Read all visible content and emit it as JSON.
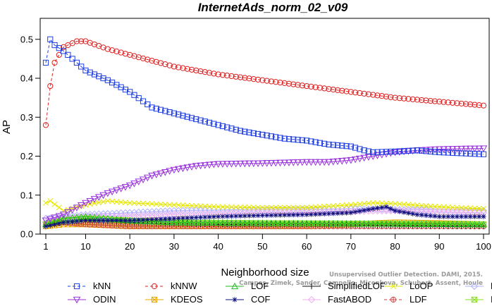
{
  "chart_data": {
    "type": "line",
    "title": "InternetAds_norm_02_v09",
    "xlabel": "Neighborhood size",
    "ylabel": "AP",
    "xlim": [
      1,
      100
    ],
    "ylim": [
      0,
      0.52
    ],
    "xticks": [
      1,
      10,
      20,
      30,
      40,
      50,
      60,
      70,
      80,
      90,
      100
    ],
    "yticks": [
      0.0,
      0.1,
      0.2,
      0.3,
      0.4,
      0.5
    ],
    "credit_lines": [
      "Unsupervised Outlier Detection. DAMI, 2015.",
      "Campos, Zimek, Sander, Campello, Micenkova, Schubert, Assent, Houle"
    ],
    "series": [
      {
        "name": "kNN",
        "color": "#1f3fe0",
        "marker": "square",
        "dash": "4,3",
        "keypoints": [
          [
            1,
            0.44
          ],
          [
            2,
            0.5
          ],
          [
            3,
            0.485
          ],
          [
            5,
            0.47
          ],
          [
            8,
            0.44
          ],
          [
            10,
            0.42
          ],
          [
            15,
            0.395
          ],
          [
            20,
            0.365
          ],
          [
            25,
            0.325
          ],
          [
            30,
            0.31
          ],
          [
            35,
            0.295
          ],
          [
            40,
            0.28
          ],
          [
            45,
            0.265
          ],
          [
            50,
            0.255
          ],
          [
            55,
            0.245
          ],
          [
            60,
            0.24
          ],
          [
            65,
            0.23
          ],
          [
            70,
            0.225
          ],
          [
            73,
            0.215
          ],
          [
            75,
            0.21
          ],
          [
            80,
            0.212
          ],
          [
            85,
            0.215
          ],
          [
            90,
            0.21
          ],
          [
            100,
            0.205
          ]
        ]
      },
      {
        "name": "kNNW",
        "color": "#e02020",
        "marker": "circle",
        "dash": "4,3",
        "keypoints": [
          [
            1,
            0.28
          ],
          [
            2,
            0.38
          ],
          [
            3,
            0.44
          ],
          [
            5,
            0.48
          ],
          [
            8,
            0.495
          ],
          [
            10,
            0.495
          ],
          [
            15,
            0.475
          ],
          [
            20,
            0.46
          ],
          [
            30,
            0.43
          ],
          [
            40,
            0.41
          ],
          [
            50,
            0.395
          ],
          [
            60,
            0.38
          ],
          [
            70,
            0.365
          ],
          [
            80,
            0.35
          ],
          [
            90,
            0.34
          ],
          [
            100,
            0.33
          ]
        ]
      },
      {
        "name": "LOF",
        "color": "#22bb22",
        "marker": "triangle",
        "dash": "",
        "keypoints": [
          [
            1,
            0.025
          ],
          [
            5,
            0.04
          ],
          [
            10,
            0.045
          ],
          [
            15,
            0.04
          ],
          [
            20,
            0.035
          ],
          [
            30,
            0.03
          ],
          [
            50,
            0.028
          ],
          [
            70,
            0.027
          ],
          [
            100,
            0.025
          ]
        ]
      },
      {
        "name": "SimplifiedLOF",
        "color": "#111111",
        "marker": "plus",
        "dash": "",
        "keypoints": [
          [
            1,
            0.02
          ],
          [
            5,
            0.03
          ],
          [
            10,
            0.035
          ],
          [
            20,
            0.03
          ],
          [
            40,
            0.025
          ],
          [
            60,
            0.025
          ],
          [
            80,
            0.022
          ],
          [
            100,
            0.02
          ]
        ]
      },
      {
        "name": "LoOP",
        "color": "#e6e600",
        "marker": "x",
        "dash": "",
        "keypoints": [
          [
            1,
            0.08
          ],
          [
            2,
            0.085
          ],
          [
            5,
            0.06
          ],
          [
            10,
            0.075
          ],
          [
            15,
            0.085
          ],
          [
            20,
            0.08
          ],
          [
            30,
            0.075
          ],
          [
            40,
            0.07
          ],
          [
            50,
            0.068
          ],
          [
            60,
            0.068
          ],
          [
            70,
            0.075
          ],
          [
            75,
            0.08
          ],
          [
            80,
            0.078
          ],
          [
            90,
            0.07
          ],
          [
            100,
            0.065
          ]
        ]
      },
      {
        "name": "LDOF",
        "color": "#b0b0ff",
        "marker": "diamond",
        "dash": "",
        "keypoints": [
          [
            1,
            0.04
          ],
          [
            5,
            0.045
          ],
          [
            10,
            0.05
          ],
          [
            20,
            0.055
          ],
          [
            30,
            0.06
          ],
          [
            40,
            0.062
          ],
          [
            50,
            0.063
          ],
          [
            60,
            0.064
          ],
          [
            70,
            0.065
          ],
          [
            80,
            0.063
          ],
          [
            90,
            0.062
          ],
          [
            100,
            0.06
          ]
        ]
      },
      {
        "name": "ODIN",
        "color": "#9933dd",
        "marker": "triangle-down",
        "dash": "",
        "keypoints": [
          [
            1,
            0.035
          ],
          [
            5,
            0.05
          ],
          [
            10,
            0.08
          ],
          [
            15,
            0.105
          ],
          [
            20,
            0.125
          ],
          [
            25,
            0.15
          ],
          [
            30,
            0.165
          ],
          [
            35,
            0.175
          ],
          [
            40,
            0.18
          ],
          [
            50,
            0.182
          ],
          [
            60,
            0.185
          ],
          [
            65,
            0.185
          ],
          [
            70,
            0.19
          ],
          [
            75,
            0.2
          ],
          [
            80,
            0.21
          ],
          [
            85,
            0.215
          ],
          [
            90,
            0.218
          ],
          [
            100,
            0.22
          ]
        ]
      },
      {
        "name": "KDEOS",
        "color": "#e6a800",
        "marker": "square-x",
        "dash": "",
        "keypoints": [
          [
            1,
            0.02
          ],
          [
            5,
            0.025
          ],
          [
            10,
            0.025
          ],
          [
            20,
            0.02
          ],
          [
            40,
            0.02
          ],
          [
            60,
            0.02
          ],
          [
            70,
            0.025
          ],
          [
            80,
            0.03
          ],
          [
            90,
            0.028
          ],
          [
            100,
            0.025
          ]
        ]
      },
      {
        "name": "COF",
        "color": "#101080",
        "marker": "star",
        "dash": "",
        "keypoints": [
          [
            1,
            0.02
          ],
          [
            5,
            0.03
          ],
          [
            10,
            0.035
          ],
          [
            20,
            0.035
          ],
          [
            30,
            0.04
          ],
          [
            40,
            0.045
          ],
          [
            50,
            0.048
          ],
          [
            60,
            0.05
          ],
          [
            70,
            0.055
          ],
          [
            75,
            0.065
          ],
          [
            78,
            0.07
          ],
          [
            80,
            0.06
          ],
          [
            85,
            0.05
          ],
          [
            90,
            0.045
          ],
          [
            100,
            0.045
          ]
        ]
      },
      {
        "name": "FastABOD",
        "color": "#f0b0f0",
        "marker": "diamond",
        "dash": "",
        "keypoints": [
          [
            1,
            0.03
          ],
          [
            5,
            0.04
          ],
          [
            10,
            0.045
          ],
          [
            20,
            0.045
          ],
          [
            30,
            0.05
          ],
          [
            40,
            0.052
          ],
          [
            50,
            0.055
          ],
          [
            60,
            0.055
          ],
          [
            70,
            0.058
          ],
          [
            80,
            0.06
          ],
          [
            90,
            0.058
          ],
          [
            100,
            0.055
          ]
        ]
      },
      {
        "name": "LDF",
        "color": "#cc4444",
        "marker": "circle-plus",
        "dash": "4,3",
        "keypoints": [
          [
            1,
            0.025
          ],
          [
            5,
            0.03
          ],
          [
            10,
            0.025
          ],
          [
            20,
            0.02
          ],
          [
            40,
            0.02
          ],
          [
            60,
            0.02
          ],
          [
            80,
            0.02
          ],
          [
            100,
            0.02
          ]
        ]
      },
      {
        "name": "INFLO",
        "color": "#88dd22",
        "marker": "hourglass",
        "dash": "",
        "keypoints": [
          [
            1,
            0.025
          ],
          [
            5,
            0.035
          ],
          [
            10,
            0.04
          ],
          [
            20,
            0.035
          ],
          [
            30,
            0.03
          ],
          [
            50,
            0.028
          ],
          [
            70,
            0.027
          ],
          [
            100,
            0.025
          ]
        ]
      }
    ]
  }
}
